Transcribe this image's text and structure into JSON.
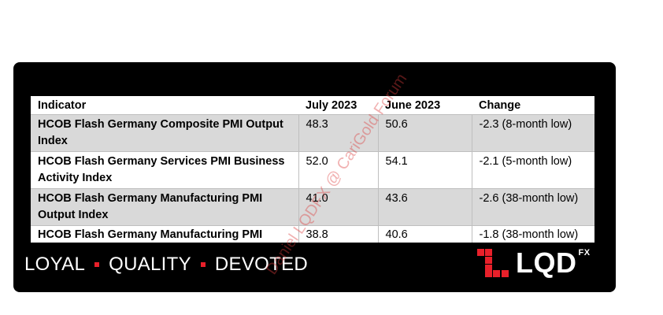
{
  "table": {
    "headers": [
      "Indicator",
      "July 2023",
      "June 2023",
      "Change"
    ],
    "rows": [
      {
        "indicator": "HCOB Flash Germany Composite PMI Output Index",
        "july": "48.3",
        "june": "50.6",
        "change": "-2.3 (8-month low)"
      },
      {
        "indicator": "HCOB Flash Germany Services PMI Business Activity Index",
        "july": "52.0",
        "june": "54.1",
        "change": "-2.1 (5-month low)"
      },
      {
        "indicator": "HCOB Flash Germany Manufacturing PMI Output Index",
        "july": "41.0",
        "june": "43.6",
        "change": "-2.6 (38-month low)"
      },
      {
        "indicator": "HCOB Flash Germany Manufacturing PMI",
        "july": "38.8",
        "june": "40.6",
        "change": "-1.8 (38-month low)"
      }
    ]
  },
  "footer": {
    "tagline_words": [
      "LOYAL",
      "QUALITY",
      "DEVOTED"
    ],
    "logo_text": "LQD",
    "logo_sup": "FX"
  },
  "watermark": "Daniel LQDFX @ CariGold Forum",
  "colors": {
    "card_background": "#000000",
    "shaded_row": "#d9d9d9",
    "accent_red": "#e8202a"
  },
  "icons": {
    "logo_mark": "lqd-logo-mark-icon",
    "separator": "red-square-dot-icon"
  }
}
